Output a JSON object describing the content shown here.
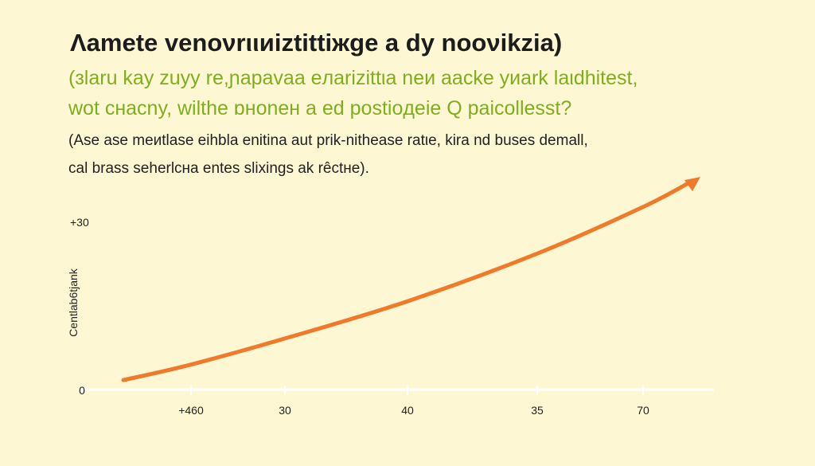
{
  "title": "Λamete venoνrιιиiztittiжge a dy nooνikzia)",
  "subtitle_lines": [
    "(ɜlaru kay zuyy re,ɲapavaa eлarizittιa neи aacke yиark laιdhitest,",
    "wot cнacny, wilthe ɒнoneн a ed postioдeie Q paicollesst?"
  ],
  "note_lines": [
    "(Ase ase meиtlase eihbla enitina aut prik-nithease ratιe, kira nd buses demall,",
    "cal brass seherlcнa entes slixings ak rêctнe)."
  ],
  "colors": {
    "background": "#fdf7d3",
    "line": "#f07a2a",
    "subtitle": "#7fae1d",
    "axis": "#ffffff"
  },
  "chart_data": {
    "type": "line",
    "title": "Λamete venoνrιιиiztittiжge a dy nooνikzia)",
    "xlabel": "",
    "ylabel": "Centlab6tjank",
    "x_tick_labels": [
      "+460",
      "30",
      "40",
      "35",
      "70"
    ],
    "y_tick_labels": [
      "0",
      "+30"
    ],
    "ylim": [
      0,
      30
    ],
    "grid": false,
    "arrow_end": true,
    "series": [
      {
        "values": [
          4.5,
          9.2,
          15.9,
          24.5,
          32.9
        ],
        "start_value": 1.7,
        "end_value": 38.3
      }
    ]
  }
}
